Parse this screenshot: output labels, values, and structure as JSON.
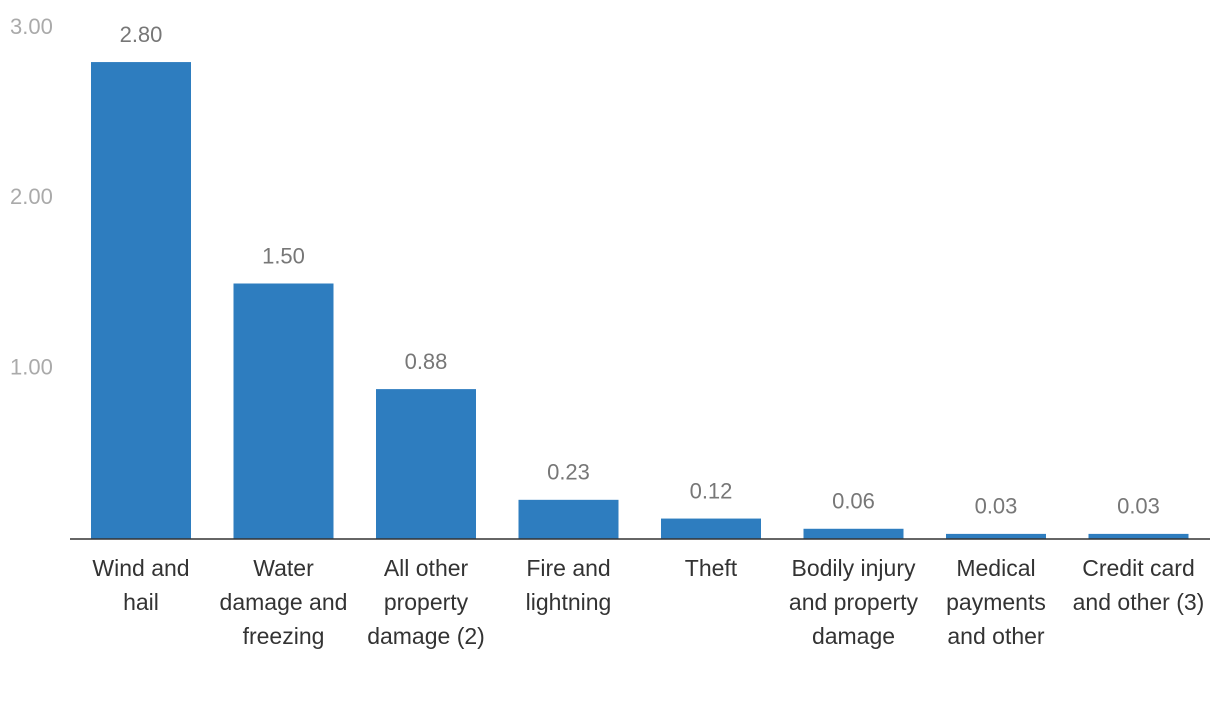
{
  "chart_data": {
    "type": "bar",
    "categories": [
      "Wind and hail",
      "Water damage and freezing",
      "All other property damage (2)",
      "Fire and lightning",
      "Theft",
      "Bodily injury and property damage",
      "Medical payments and other",
      "Credit card and other (3)"
    ],
    "values": [
      2.8,
      1.5,
      0.88,
      0.23,
      0.12,
      0.06,
      0.03,
      0.03
    ],
    "value_labels": [
      "2.80",
      "1.50",
      "0.88",
      "0.23",
      "0.12",
      "0.06",
      "0.03",
      "0.03"
    ],
    "color": "#2e7dbf",
    "ylim": [
      0,
      3
    ],
    "yticks": [
      {
        "value": 1,
        "label": "1.00"
      },
      {
        "value": 2,
        "label": "2.00"
      },
      {
        "value": 3,
        "label": "3.00"
      }
    ],
    "grid": false
  }
}
